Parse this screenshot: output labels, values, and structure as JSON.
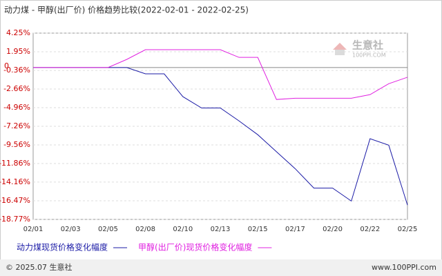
{
  "chart_data": {
    "type": "line",
    "title": "动力煤 - 甲醇(出厂价) 价格趋势比较(2022-02-01 - 2022-02-25)",
    "watermark": "生意社",
    "watermark_sub": "100PPI.COM",
    "categories": [
      "02/01",
      null,
      "02/03",
      null,
      "02/05",
      null,
      "02/08",
      null,
      "02/10",
      null,
      "02/13",
      null,
      "02/15",
      null,
      "02/17",
      null,
      "02/20",
      null,
      "02/22",
      null,
      "02/25"
    ],
    "series": [
      {
        "name": "动力煤现货价格变化幅度",
        "color": "#1a1aa6",
        "values": [
          0,
          0,
          0,
          0,
          0,
          0,
          -0.78,
          -0.78,
          -3.6,
          -5.0,
          -5.0,
          -6.6,
          -8.3,
          -10.4,
          -12.5,
          -14.9,
          -14.9,
          -16.5,
          -8.8,
          -9.6,
          -17.0
        ]
      },
      {
        "name": "甲醇(出厂价)现货价格变化幅度",
        "color": "#e020e0",
        "values": [
          0,
          0,
          0,
          0,
          0,
          1.0,
          2.2,
          2.2,
          2.2,
          2.2,
          2.2,
          1.25,
          1.25,
          -3.95,
          -3.8,
          -3.8,
          -3.8,
          -3.8,
          -3.35,
          -2.0,
          -1.2
        ]
      }
    ],
    "ylim": [
      -18.77,
      4.25
    ],
    "yticks": [
      {
        "value": 4.25,
        "label": "4.25%"
      },
      {
        "value": 1.95,
        "label": "1.95%"
      },
      0,
      {
        "value": -0.36,
        "label": "-0.36%"
      },
      {
        "value": -2.66,
        "label": "-2.66%"
      },
      {
        "value": -4.96,
        "label": "-4.96%"
      },
      {
        "value": -7.26,
        "label": "-7.26%"
      },
      {
        "value": -9.56,
        "label": "-9.56%"
      },
      {
        "value": -11.86,
        "label": "-11.86%"
      },
      {
        "value": -14.16,
        "label": "-14.16%"
      },
      {
        "value": -16.47,
        "label": "-16.47%"
      },
      {
        "value": -18.77,
        "label": "-18.77%"
      }
    ],
    "grid": true,
    "footer_left": "© 2025.07 生意社",
    "footer_right": "www.100PPI.com"
  }
}
